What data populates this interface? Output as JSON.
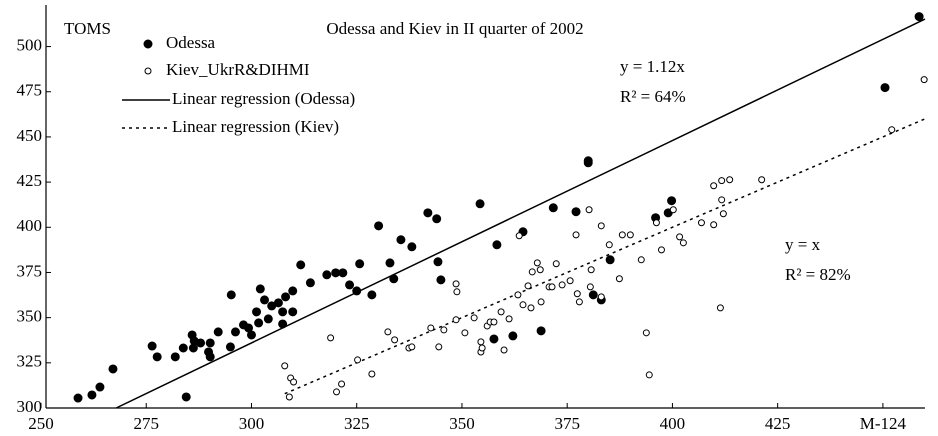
{
  "chart_data": {
    "type": "scatter",
    "title": "Odessa and Kiev in II quarter of 2002",
    "y_label": "TOMS",
    "xlim": [
      250,
      460
    ],
    "ylim": [
      300,
      523
    ],
    "xticks": [
      250,
      275,
      300,
      325,
      350,
      375,
      400,
      425,
      {
        "value": 450,
        "label": "M-124"
      }
    ],
    "yticks": [
      300,
      325,
      350,
      375,
      400,
      425,
      450,
      475,
      500
    ],
    "series": [
      {
        "name": "Odessa",
        "color": "#000000",
        "marker": "filled",
        "x": [
          258.8,
          262.1,
          264.0,
          267.1,
          276.4,
          277.6,
          281.9,
          283.8,
          284.5,
          285.9,
          286.4,
          286.2,
          287.9,
          289.8,
          290.2,
          290.2,
          292.1,
          295.0,
          295.2,
          296.2,
          298.1,
          299.3,
          300.0,
          301.2,
          301.7,
          302.1,
          303.1,
          304.0,
          304.8,
          306.4,
          307.4,
          307.4,
          308.1,
          309.8,
          309.8,
          311.7,
          314.0,
          317.9,
          320.0,
          321.7,
          323.3,
          325.0,
          325.7,
          328.6,
          330.2,
          332.9,
          333.8,
          335.5,
          338.1,
          341.9,
          344.3,
          344.0,
          345.0,
          354.3,
          357.6,
          358.3,
          362.1,
          364.5,
          368.8,
          371.7,
          377.1,
          380.0,
          380.0,
          381.2,
          383.1,
          385.2,
          396.0,
          399.0,
          399.8,
          450.5,
          458.6
        ],
        "values": [
          305.5,
          307.2,
          311.6,
          321.6,
          334.3,
          328.3,
          328.3,
          333.2,
          306.1,
          340.4,
          337.1,
          333.2,
          336.0,
          331.0,
          328.3,
          336.0,
          342.1,
          333.8,
          362.6,
          342.1,
          346.0,
          344.3,
          340.4,
          353.2,
          347.1,
          365.9,
          359.8,
          349.3,
          356.5,
          358.2,
          353.2,
          346.5,
          361.5,
          353.2,
          364.8,
          379.2,
          369.3,
          373.7,
          374.8,
          374.8,
          368.1,
          364.8,
          379.8,
          362.6,
          400.8,
          380.3,
          371.5,
          393.1,
          389.2,
          408.0,
          380.9,
          404.7,
          370.9,
          413.0,
          338.2,
          390.3,
          339.9,
          397.5,
          342.7,
          410.8,
          408.6,
          436.8,
          435.7,
          362.6,
          359.8,
          382.0,
          405.3,
          408.0,
          414.7,
          477.3,
          516.6
        ]
      },
      {
        "name": "Kiev_UkrR&DIHMI",
        "color": "#000000",
        "marker": "open",
        "x": [
          309.0,
          307.9,
          309.3,
          310.0,
          318.8,
          320.2,
          321.4,
          325.2,
          328.6,
          332.4,
          334.0,
          337.4,
          338.1,
          342.6,
          344.5,
          345.7,
          348.6,
          348.6,
          348.8,
          350.7,
          352.9,
          354.5,
          354.5,
          354.8,
          356.0,
          356.7,
          357.6,
          359.3,
          360.0,
          361.2,
          363.3,
          363.6,
          364.5,
          365.7,
          366.4,
          366.7,
          367.9,
          368.6,
          368.8,
          370.7,
          371.4,
          372.4,
          373.8,
          375.7,
          377.1,
          377.4,
          377.9,
          380.2,
          380.5,
          380.7,
          383.1,
          383.1,
          385.0,
          387.4,
          388.1,
          390.0,
          392.6,
          393.8,
          394.5,
          396.2,
          397.4,
          400.2,
          401.7,
          402.6,
          406.9,
          409.8,
          409.8,
          411.7,
          411.7,
          413.6,
          421.2,
          412.1,
          411.4,
          452.1,
          459.8
        ],
        "values": [
          306.1,
          323.3,
          316.6,
          314.4,
          338.8,
          308.9,
          313.3,
          326.6,
          318.8,
          342.1,
          337.7,
          333.2,
          333.8,
          344.3,
          333.8,
          343.2,
          348.8,
          368.7,
          364.3,
          341.6,
          349.9,
          336.6,
          331.0,
          333.2,
          345.4,
          347.6,
          347.6,
          353.2,
          332.1,
          349.3,
          362.6,
          395.3,
          357.1,
          367.6,
          355.4,
          375.3,
          380.3,
          376.5,
          358.7,
          367.0,
          367.0,
          379.8,
          368.1,
          370.4,
          395.8,
          363.2,
          358.7,
          409.7,
          367.0,
          376.5,
          361.5,
          400.8,
          390.3,
          371.5,
          395.8,
          395.8,
          382.0,
          341.6,
          318.3,
          402.5,
          387.5,
          409.7,
          394.7,
          391.4,
          402.5,
          423.0,
          401.4,
          425.8,
          415.2,
          426.3,
          426.3,
          407.5,
          355.4,
          454.0,
          481.7
        ]
      }
    ],
    "regression": [
      {
        "name": "Linear regression (Odessa)",
        "slope": 1.12,
        "style": "solid",
        "series": 0
      },
      {
        "name": "Linear regression (Kiev)",
        "slope": 1,
        "style": "dotted",
        "series": 1
      }
    ],
    "annotations": [
      "y = 1.12x",
      "R² = 64%",
      "y = x",
      "R² = 82%"
    ]
  }
}
